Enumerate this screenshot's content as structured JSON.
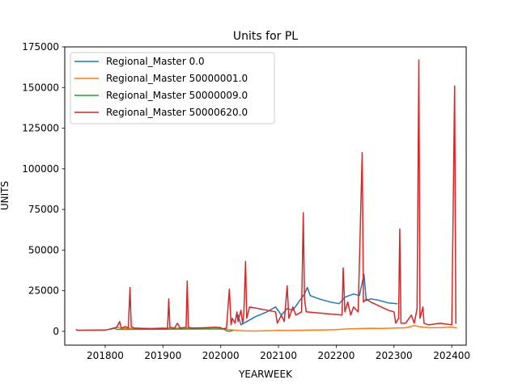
{
  "chart_data": {
    "type": "line",
    "title": "Units for PL",
    "xlabel": "YEARWEEK",
    "ylabel": "UNITS",
    "xlim": [
      201730,
      202425
    ],
    "ylim": [
      -8500,
      175000
    ],
    "xticks": [
      201800,
      201900,
      202000,
      202100,
      202200,
      202300,
      202400
    ],
    "xtick_labels": [
      "201800",
      "201900",
      "202000",
      "202100",
      "202200",
      "202300",
      "202400"
    ],
    "yticks": [
      0,
      25000,
      50000,
      75000,
      100000,
      125000,
      150000,
      175000
    ],
    "ytick_labels": [
      "0",
      "25000",
      "50000",
      "75000",
      "100000",
      "125000",
      "150000",
      "175000"
    ],
    "grid": false,
    "legend_position": "upper-left",
    "series": [
      {
        "name": "Regional_Master 0.0",
        "color": "#1f77b4",
        "points": [
          [
            202030,
            10000
          ],
          [
            202035,
            4000
          ],
          [
            202045,
            6000
          ],
          [
            202060,
            9000
          ],
          [
            202080,
            12000
          ],
          [
            202095,
            15000
          ],
          [
            202105,
            10000
          ],
          [
            202115,
            14000
          ],
          [
            202125,
            13000
          ],
          [
            202135,
            18000
          ],
          [
            202145,
            23000
          ],
          [
            202150,
            27000
          ],
          [
            202155,
            22000
          ],
          [
            202170,
            20000
          ],
          [
            202190,
            18000
          ],
          [
            202205,
            17000
          ],
          [
            202215,
            21000
          ],
          [
            202230,
            23000
          ],
          [
            202240,
            22000
          ],
          [
            202248,
            35000
          ],
          [
            202252,
            19000
          ],
          [
            202260,
            20000
          ],
          [
            202275,
            19000
          ],
          [
            202290,
            17500
          ],
          [
            202305,
            17000
          ]
        ]
      },
      {
        "name": "Regional_Master 50000001.0",
        "color": "#ff7f0e",
        "points": [
          [
            201810,
            1500
          ],
          [
            201820,
            2500
          ],
          [
            201830,
            1800
          ],
          [
            201850,
            2000
          ],
          [
            201880,
            1800
          ],
          [
            201900,
            2200
          ],
          [
            201920,
            2000
          ],
          [
            201950,
            2100
          ],
          [
            201975,
            1900
          ],
          [
            201990,
            2500
          ],
          [
            202005,
            1500
          ],
          [
            202020,
            800
          ],
          [
            202040,
            300
          ],
          [
            202060,
            200
          ],
          [
            202080,
            400
          ],
          [
            202100,
            600
          ],
          [
            202120,
            500
          ],
          [
            202140,
            700
          ],
          [
            202160,
            800
          ],
          [
            202180,
            900
          ],
          [
            202200,
            1100
          ],
          [
            202220,
            1500
          ],
          [
            202240,
            1700
          ],
          [
            202260,
            1900
          ],
          [
            202280,
            1800
          ],
          [
            202300,
            2000
          ],
          [
            202320,
            2200
          ],
          [
            202335,
            3500
          ],
          [
            202345,
            2800
          ],
          [
            202360,
            2200
          ],
          [
            202380,
            2300
          ],
          [
            202400,
            2600
          ],
          [
            202408,
            2200
          ]
        ]
      },
      {
        "name": "Regional_Master 50000009.0",
        "color": "#2ca02c",
        "points": [
          [
            201810,
            1500
          ],
          [
            201815,
            2000
          ],
          [
            201820,
            1200
          ],
          [
            202005,
            1500
          ],
          [
            202010,
            300
          ],
          [
            202015,
            0
          ],
          [
            202020,
            400
          ]
        ]
      },
      {
        "name": "Regional_Master 50000620.0",
        "color": "#d62728",
        "points": [
          [
            201750,
            1000
          ],
          [
            201752,
            700
          ],
          [
            201800,
            800
          ],
          [
            201810,
            1500
          ],
          [
            201820,
            2500
          ],
          [
            201825,
            6000
          ],
          [
            201828,
            2000
          ],
          [
            201835,
            3000
          ],
          [
            201840,
            2000
          ],
          [
            201843,
            27000
          ],
          [
            201845,
            3000
          ],
          [
            201850,
            2000
          ],
          [
            201860,
            1800
          ],
          [
            201880,
            1500
          ],
          [
            201900,
            1700
          ],
          [
            201908,
            1600
          ],
          [
            201910,
            20000
          ],
          [
            201912,
            2500
          ],
          [
            201920,
            2000
          ],
          [
            201925,
            5000
          ],
          [
            201930,
            2000
          ],
          [
            201940,
            2500
          ],
          [
            201942,
            31000
          ],
          [
            201944,
            2500
          ],
          [
            201950,
            2000
          ],
          [
            201970,
            2200
          ],
          [
            201990,
            2500
          ],
          [
            202000,
            2300
          ],
          [
            202003,
            1500
          ],
          [
            202010,
            2000
          ],
          [
            202015,
            26000
          ],
          [
            202018,
            4000
          ],
          [
            202020,
            8000
          ],
          [
            202025,
            5000
          ],
          [
            202028,
            12000
          ],
          [
            202030,
            6000
          ],
          [
            202035,
            13000
          ],
          [
            202038,
            5000
          ],
          [
            202040,
            10000
          ],
          [
            202043,
            43000
          ],
          [
            202045,
            8000
          ],
          [
            202050,
            15000
          ],
          [
            202095,
            12000
          ],
          [
            202098,
            5000
          ],
          [
            202105,
            10000
          ],
          [
            202110,
            6000
          ],
          [
            202115,
            28000
          ],
          [
            202118,
            8000
          ],
          [
            202125,
            15000
          ],
          [
            202130,
            10000
          ],
          [
            202140,
            12000
          ],
          [
            202143,
            73000
          ],
          [
            202145,
            20000
          ],
          [
            202148,
            12000
          ],
          [
            202210,
            10000
          ],
          [
            202212,
            39000
          ],
          [
            202215,
            12000
          ],
          [
            202220,
            18000
          ],
          [
            202225,
            10000
          ],
          [
            202230,
            15000
          ],
          [
            202238,
            12000
          ],
          [
            202245,
            110000
          ],
          [
            202247,
            18000
          ],
          [
            202252,
            20000
          ],
          [
            202260,
            18000
          ],
          [
            202290,
            13000
          ],
          [
            202300,
            12000
          ],
          [
            202303,
            5000
          ],
          [
            202308,
            8000
          ],
          [
            202310,
            63000
          ],
          [
            202312,
            5000
          ],
          [
            202320,
            5000
          ],
          [
            202330,
            10000
          ],
          [
            202335,
            5000
          ],
          [
            202340,
            14000
          ],
          [
            202343,
            167000
          ],
          [
            202345,
            8000
          ],
          [
            202350,
            15000
          ],
          [
            202352,
            5000
          ],
          [
            202360,
            4000
          ],
          [
            202380,
            5000
          ],
          [
            202400,
            4000
          ],
          [
            202405,
            151000
          ],
          [
            202407,
            5000
          ]
        ]
      }
    ]
  }
}
